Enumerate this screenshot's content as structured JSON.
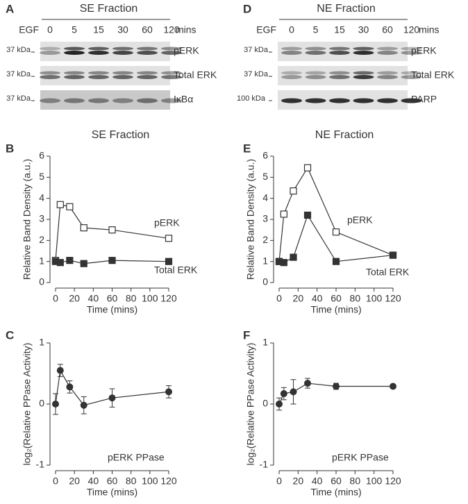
{
  "blots": [
    {
      "panel": "A",
      "title": "SE Fraction",
      "lane_header": "EGF",
      "lanes": [
        "0",
        "5",
        "15",
        "30",
        "60",
        "120"
      ],
      "unit": "mins",
      "rows": [
        {
          "marker": "37 kDa",
          "label": "pERK"
        },
        {
          "marker": "37 kDa",
          "label": "Total ERK"
        },
        {
          "marker": "37 kDa",
          "label": "IκBα"
        }
      ]
    },
    {
      "panel": "D",
      "title": "NE Fraction",
      "lane_header": "EGF",
      "lanes": [
        "0",
        "5",
        "15",
        "30",
        "60",
        "120"
      ],
      "unit": "mins",
      "rows": [
        {
          "marker": "37 kDa",
          "label": "pERK"
        },
        {
          "marker": "37 kDa",
          "label": "Total ERK"
        },
        {
          "marker": "100 kDa",
          "label": "PARP"
        }
      ]
    }
  ],
  "chart_data": [
    {
      "type": "line",
      "panel": "B",
      "title": "SE Fraction",
      "x_label": "Time (mins)",
      "y_label": "Relative Band Density (a.u.)",
      "x": [
        0,
        5,
        15,
        30,
        60,
        120
      ],
      "xlim": [
        0,
        120
      ],
      "xticks": [
        0,
        20,
        40,
        60,
        80,
        100,
        120
      ],
      "ylim": [
        0,
        6
      ],
      "yticks": [
        0,
        1,
        2,
        3,
        4,
        5,
        6
      ],
      "series": [
        {
          "name": "pERK",
          "color": "#333333",
          "marker": "open-square",
          "values": [
            1.05,
            3.7,
            3.6,
            2.6,
            2.5,
            2.1
          ]
        },
        {
          "name": "Total ERK",
          "color": "#333333",
          "marker": "square",
          "values": [
            1.0,
            0.95,
            1.05,
            0.9,
            1.05,
            1.0
          ]
        }
      ]
    },
    {
      "type": "line",
      "panel": "E",
      "title": "NE Fraction",
      "x_label": "Time (mins)",
      "y_label": "Relative Band Density (a.u.)",
      "x": [
        0,
        5,
        15,
        30,
        60,
        120
      ],
      "xlim": [
        0,
        120
      ],
      "xticks": [
        0,
        20,
        40,
        60,
        80,
        100,
        120
      ],
      "ylim": [
        0,
        6
      ],
      "yticks": [
        0,
        1,
        2,
        3,
        4,
        5,
        6
      ],
      "series": [
        {
          "name": "pERK",
          "color": "#333333",
          "marker": "open-square",
          "values": [
            1.0,
            3.25,
            4.35,
            5.45,
            2.4,
            1.3
          ]
        },
        {
          "name": "Total ERK",
          "color": "#333333",
          "marker": "square",
          "values": [
            1.0,
            0.95,
            1.2,
            3.2,
            1.0,
            1.3
          ]
        }
      ]
    },
    {
      "type": "line",
      "panel": "C",
      "x_label": "Time (mins)",
      "y_label": "log₂(Relative PPase Activity)",
      "x": [
        0,
        5,
        15,
        30,
        60,
        120
      ],
      "xlim": [
        0,
        120
      ],
      "xticks": [
        0,
        20,
        40,
        60,
        80,
        100,
        120
      ],
      "ylim": [
        -1,
        1
      ],
      "yticks": [
        -1,
        0,
        1
      ],
      "series": [
        {
          "name": "pERK PPase",
          "color": "#333333",
          "marker": "circle",
          "values": [
            0,
            0.55,
            0.28,
            -0.02,
            0.1,
            0.2
          ],
          "errors": [
            0.17,
            0.1,
            0.1,
            0.14,
            0.15,
            0.1
          ]
        }
      ]
    },
    {
      "type": "line",
      "panel": "F",
      "x_label": "Time (mins)",
      "y_label": "log₂(Relative PPase Activity)",
      "x": [
        0,
        5,
        15,
        30,
        60,
        120
      ],
      "xlim": [
        0,
        120
      ],
      "xticks": [
        0,
        20,
        40,
        60,
        80,
        100,
        120
      ],
      "ylim": [
        -1,
        1
      ],
      "yticks": [
        -1,
        0,
        1
      ],
      "series": [
        {
          "name": "pERK PPase",
          "color": "#333333",
          "marker": "circle",
          "values": [
            0,
            0.17,
            0.2,
            0.34,
            0.29,
            0.29
          ],
          "errors": [
            0.1,
            0.1,
            0.2,
            0.08,
            0.05,
            0.03
          ]
        }
      ]
    }
  ]
}
